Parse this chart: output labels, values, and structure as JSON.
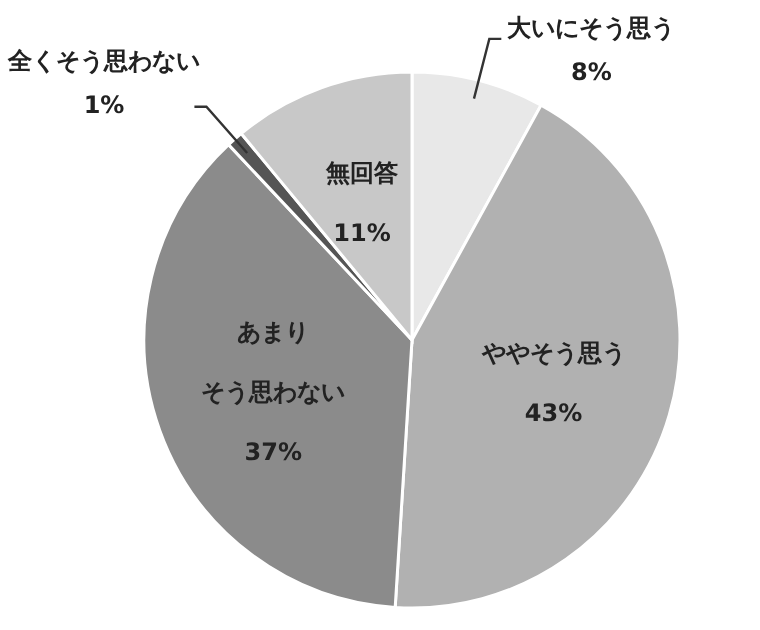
{
  "chart_data": {
    "type": "pie",
    "categories": [
      "大いにそう思う",
      "ややそう思う",
      "あまりそう思わない",
      "全くそう思わない",
      "無回答"
    ],
    "values": [
      8,
      43,
      37,
      1,
      11
    ],
    "colors": [
      "#e8e8e8",
      "#b1b1b1",
      "#8b8b8b",
      "#555555",
      "#c8c8c8"
    ],
    "value_labels": [
      "8%",
      "43%",
      "37%",
      "1%",
      "11%"
    ]
  }
}
